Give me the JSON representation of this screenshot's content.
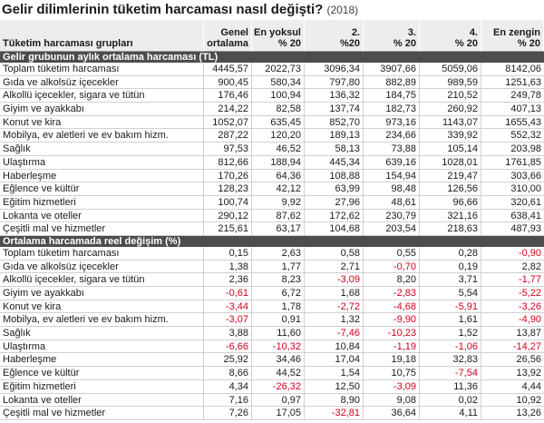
{
  "header": {
    "title": "Gelir dilimlerinin tüketim harcaması nasıl değişti?",
    "year": "(2018)"
  },
  "columns": [
    [
      "Tüketim harcaması grupları"
    ],
    [
      "Genel",
      "ortalama"
    ],
    [
      "En yoksul",
      "% 20"
    ],
    [
      "2.",
      "%20"
    ],
    [
      "3.",
      "% 20"
    ],
    [
      "4.",
      "% 20"
    ],
    [
      "En zengin",
      "% 20"
    ]
  ],
  "negative_color": "#d0021b",
  "sections": [
    {
      "title": "Gelir grubunun aylık ortalama harcaması (TL)",
      "rows": [
        [
          "Toplam tüketim harcaması",
          "4445,57",
          "2022,73",
          "3096,34",
          "3907,66",
          "5059,06",
          "8142,06"
        ],
        [
          "Gıda ve alkolsüz içecekler",
          "900,45",
          "580,34",
          "797,80",
          "882,89",
          "989,59",
          "1251,63"
        ],
        [
          "Alkollü içecekler, sigara ve tütün",
          "176,46",
          "100,94",
          "136,32",
          "184,75",
          "210,52",
          "249,78"
        ],
        [
          "Giyim ve ayakkabı",
          "214,22",
          "82,58",
          "137,74",
          "182,73",
          "260,92",
          "407,13"
        ],
        [
          "Konut ve kira",
          "1052,07",
          "635,45",
          "852,70",
          "973,16",
          "1143,07",
          "1655,43"
        ],
        [
          "Mobilya, ev aletleri ve ev bakım hizm.",
          "287,22",
          "120,20",
          "189,13",
          "234,66",
          "339,92",
          "552,32"
        ],
        [
          "Sağlık",
          "97,53",
          "46,52",
          "58,13",
          "73,88",
          "105,14",
          "203,98"
        ],
        [
          "Ulaştırma",
          "812,66",
          "188,94",
          "445,34",
          "639,16",
          "1028,01",
          "1761,85"
        ],
        [
          "Haberleşme",
          "170,26",
          "64,36",
          "108,88",
          "154,94",
          "219,47",
          "303,66"
        ],
        [
          "Eğlence ve kültür",
          "128,23",
          "42,12",
          "63,99",
          "98,48",
          "126,56",
          "310,00"
        ],
        [
          "Eğitim hizmetleri",
          "100,74",
          "9,92",
          "27,96",
          "48,61",
          "96,66",
          "320,61"
        ],
        [
          "Lokanta ve oteller",
          "290,12",
          "87,62",
          "172,62",
          "230,79",
          "321,16",
          "638,41"
        ],
        [
          "Çeşitli mal ve hizmetler",
          "215,61",
          "63,17",
          "104,68",
          "203,54",
          "218,63",
          "487,93"
        ]
      ]
    },
    {
      "title": "Ortalama harcamada reel değişim (%)",
      "rows": [
        [
          "Toplam tüketim harcaması",
          "0,15",
          "2,63",
          "0,58",
          "0,55",
          "0,28",
          "-0,90"
        ],
        [
          "Gıda ve alkolsüz içecekler",
          "1,38",
          "1,77",
          "2,71",
          "-0,70",
          "0,19",
          "2,82"
        ],
        [
          "Alkollü içecekler, sigara ve tütün",
          "2,36",
          "8,23",
          "-3,09",
          "8,20",
          "3,71",
          "-1,77"
        ],
        [
          "Giyim ve ayakkabı",
          "-0,61",
          "6,72",
          "1,68",
          "-2,83",
          "5,54",
          "-5,22"
        ],
        [
          "Konut ve kira",
          "-3,44",
          "1,78",
          "-2,72",
          "-4,68",
          "-5,91",
          "-3,26"
        ],
        [
          "Mobilya, ev aletleri ve ev bakım hizm.",
          "-3,07",
          "0,91",
          "1,32",
          "-9,90",
          "1,61",
          "-4,90"
        ],
        [
          "Sağlık",
          "3,88",
          "11,60",
          "-7,46",
          "-10,23",
          "1,52",
          "13,87"
        ],
        [
          "Ulaştırma",
          "-6,66",
          "-10,32",
          "10,84",
          "-1,19",
          "-1,06",
          "-14,27"
        ],
        [
          "Haberleşme",
          "25,92",
          "34,46",
          "17,04",
          "19,18",
          "32,83",
          "26,56"
        ],
        [
          "Eğlence ve kültür",
          "8,66",
          "44,52",
          "1,54",
          "10,75",
          "-7,54",
          "13,92"
        ],
        [
          "Eğitim hizmetleri",
          "4,34",
          "-26,32",
          "12,50",
          "-3,09",
          "11,36",
          "4,44"
        ],
        [
          "Lokanta ve oteller",
          "7,16",
          "0,97",
          "8,90",
          "9,08",
          "0,02",
          "10,92"
        ],
        [
          "Çeşitli mal ve hizmetler",
          "7,26",
          "17,05",
          "-32,81",
          "36,64",
          "4,11",
          "13,26"
        ]
      ]
    }
  ]
}
